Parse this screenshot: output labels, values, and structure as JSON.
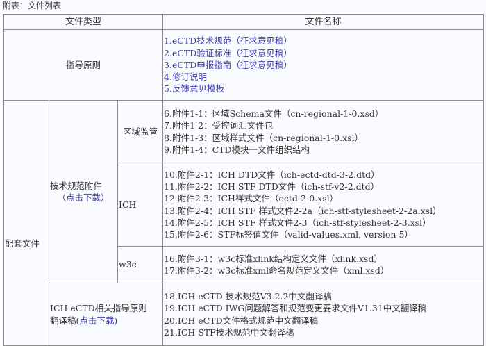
{
  "caption": "附表：文件列表",
  "headers": {
    "type": "文件类型",
    "name": "文件名称"
  },
  "colors": {
    "link": "#3a3aa6",
    "border": "#8a8a8a",
    "text": "#333333"
  },
  "guidelines": {
    "label": "指导原则",
    "items": [
      "1.eCTD技术规范（征求意见稿）",
      "2.eCTD验证标准（征求意见稿）",
      "3.eCTD申报指南（征求意见稿）",
      "4.修订说明",
      "5.反馈意见模板"
    ]
  },
  "supporting": {
    "label": "配套文件",
    "tech_spec": {
      "label": "技术规范附件",
      "download": "（点击下载）"
    },
    "regional": {
      "label": "区域监管",
      "items": [
        "6.附件1-1：区域Schema文件（cn-regional-1-0.xsd）",
        "7.附件1-2：受控词汇文件包",
        "8.附件1-3：区域样式文件（cn-regional-1-0.xsl）",
        "9.附件1-4：CTD模块一文件组织结构"
      ]
    },
    "ich": {
      "label": "ICH",
      "items": [
        "10.附件2-1：ICH DTD文件（ich-ectd-dtd-3-2.dtd）",
        "11.附件2-2：ICH STF DTD文件（ich-stf-v2-2.dtd）",
        "12.附件2-3：ICH样式文件（ectd-2-0.xsl）",
        "13.附件2-4：ICH STF 样式文件2-2a（ich-stf-stylesheet-2-2a.xsl）",
        "14.附件2-5：ICH STF 样式文件2-3（ich-stf-stylesheet-2-3.xsl）",
        "15.附件2-6：STF标签值文件（valid-values.xml, version 5）"
      ]
    },
    "w3c": {
      "label": "w3c",
      "items": [
        "16.附件3-1：w3c标准xlink结构定义文件（xlink.xsd）",
        "17.附件3-2：w3c标准xml命名规范定义文件（xml.xsd）"
      ]
    },
    "translations": {
      "label": "ICH eCTD相关指导原则翻译稿",
      "download": "(点击下载)",
      "items": [
        "18.ICH eCTD 技术规范V3.2.2中文翻译稿",
        "19.ICH eCTD IWG问题解答和规范变更要求文件V1.31中文翻译稿",
        "20.ICH eCTD文件格式规范中文翻译稿",
        "21.ICH STF技术规范中文翻译稿"
      ]
    }
  }
}
